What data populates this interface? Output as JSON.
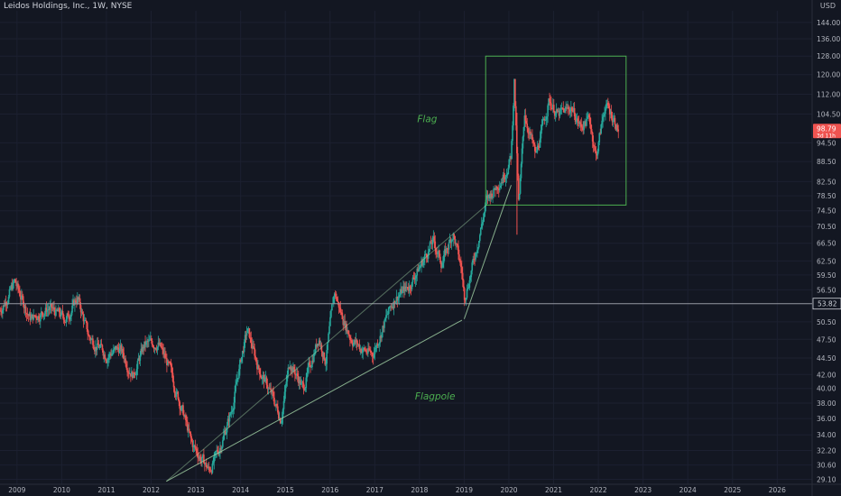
{
  "header": {
    "symbol_title": "Leidos Holdings, Inc., 1W, NYSE",
    "currency": "USD"
  },
  "chart_data": {
    "type": "candlestick",
    "title": "Leidos Holdings, Inc., 1W, NYSE",
    "y_scale": "log",
    "ylim": [
      28.6,
      150
    ],
    "xlim": [
      2008.62,
      2026.78
    ],
    "y_tick_labels": [
      "144.00",
      "136.00",
      "128.00",
      "120.00",
      "112.00",
      "104.50",
      "94.50",
      "88.50",
      "82.50",
      "78.50",
      "74.50",
      "70.50",
      "66.50",
      "62.50",
      "59.50",
      "56.50",
      "50.50",
      "47.50",
      "44.50",
      "42.00",
      "40.00",
      "38.00",
      "36.00",
      "34.00",
      "32.20",
      "30.60",
      "29.10"
    ],
    "x_tick_labels": [
      "2009",
      "2010",
      "2011",
      "2012",
      "2013",
      "2014",
      "2015",
      "2016",
      "2017",
      "2018",
      "2019",
      "2020",
      "2021",
      "2022",
      "2023",
      "2024",
      "2025",
      "2026"
    ],
    "price_path": [
      [
        2008.62,
        52.5
      ],
      [
        2008.95,
        58
      ],
      [
        2009.3,
        51
      ],
      [
        2009.7,
        53
      ],
      [
        2010.1,
        51
      ],
      [
        2010.35,
        55
      ],
      [
        2010.6,
        48
      ],
      [
        2011.0,
        45
      ],
      [
        2011.3,
        46
      ],
      [
        2011.6,
        42
      ],
      [
        2011.85,
        46.5
      ],
      [
        2012.15,
        47
      ],
      [
        2012.4,
        43
      ],
      [
        2012.7,
        37
      ],
      [
        2012.9,
        33
      ],
      [
        2013.3,
        30
      ],
      [
        2013.5,
        32
      ],
      [
        2013.8,
        37
      ],
      [
        2014.0,
        44
      ],
      [
        2014.15,
        49
      ],
      [
        2014.4,
        43
      ],
      [
        2014.7,
        39
      ],
      [
        2014.9,
        36
      ],
      [
        2015.1,
        44
      ],
      [
        2015.4,
        40
      ],
      [
        2015.75,
        48
      ],
      [
        2015.9,
        44
      ],
      [
        2016.1,
        56
      ],
      [
        2016.25,
        52
      ],
      [
        2016.45,
        48
      ],
      [
        2016.7,
        46
      ],
      [
        2016.95,
        45
      ],
      [
        2017.2,
        50
      ],
      [
        2017.45,
        55
      ],
      [
        2017.75,
        57
      ],
      [
        2018.05,
        62
      ],
      [
        2018.3,
        67
      ],
      [
        2018.5,
        62
      ],
      [
        2018.75,
        69
      ],
      [
        2018.95,
        60
      ],
      [
        2019.0,
        55
      ],
      [
        2019.2,
        62
      ],
      [
        2019.5,
        77
      ],
      [
        2019.9,
        85
      ],
      [
        2020.05,
        90
      ],
      [
        2020.12,
        118
      ],
      [
        2020.22,
        75
      ],
      [
        2020.35,
        105
      ],
      [
        2020.6,
        90
      ],
      [
        2020.9,
        110
      ],
      [
        2021.1,
        104
      ],
      [
        2021.4,
        107
      ],
      [
        2021.6,
        100
      ],
      [
        2021.8,
        103
      ],
      [
        2021.95,
        90
      ],
      [
        2022.15,
        108
      ],
      [
        2022.35,
        103
      ],
      [
        2022.45,
        98.79
      ]
    ],
    "last_price": "98.79",
    "last_price_sub": "3d 11h",
    "reference_price": "53.82",
    "flag_box": {
      "x1": 2019.48,
      "x2": 2022.62,
      "y1": 76.0,
      "y2": 128.0
    },
    "channel_lower": [
      [
        2012.34,
        28.9
      ],
      [
        2018.95,
        50.8
      ]
    ],
    "channel_upper": [
      [
        2012.34,
        28.9
      ],
      [
        2019.5,
        76.0
      ]
    ],
    "pole_top_line": [
      [
        2019.0,
        51.0
      ],
      [
        2020.05,
        81.5
      ]
    ],
    "annotations": [
      {
        "text": "Flag",
        "x": 2017.95,
        "y": 101.5
      },
      {
        "text": "Flagpole",
        "x": 2017.9,
        "y": 38.5
      }
    ],
    "colors": {
      "background": "#131722",
      "up": "#26a69a",
      "down": "#ef5350",
      "annotation": "#4caf50",
      "reference_line": "#9598a1",
      "axis_text": "#b2b5be"
    }
  }
}
